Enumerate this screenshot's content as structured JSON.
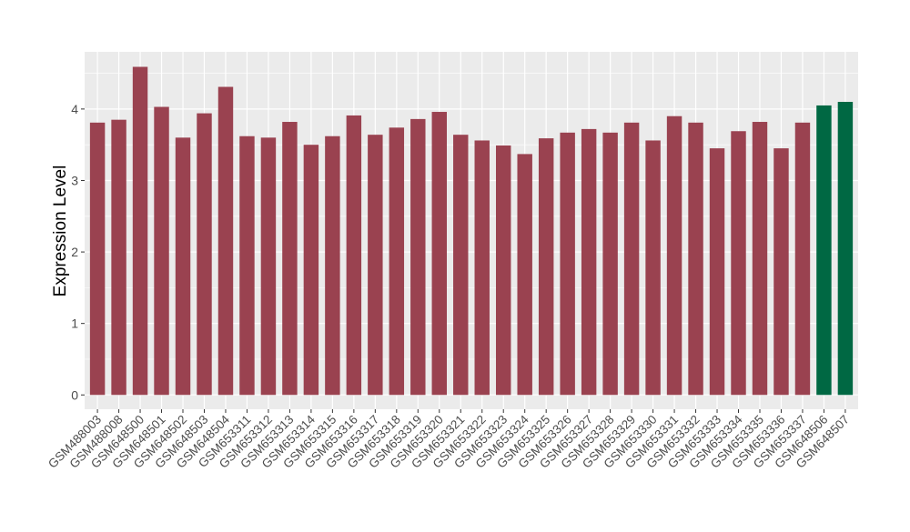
{
  "chart_data": {
    "type": "bar",
    "title": "",
    "xlabel": "",
    "ylabel": "Expression Level",
    "ylim": [
      -0.2,
      4.8
    ],
    "yticks": [
      0,
      1,
      2,
      3,
      4
    ],
    "grid": true,
    "legend": "none",
    "colors": {
      "default": "#9A4250",
      "highlight": "#006843",
      "panel": "#EBEBEB",
      "grid": "#FFFFFF"
    },
    "categories": [
      "GSM488003",
      "GSM488008",
      "GSM648500",
      "GSM648501",
      "GSM648502",
      "GSM648503",
      "GSM648504",
      "GSM653311",
      "GSM653312",
      "GSM653313",
      "GSM653314",
      "GSM653315",
      "GSM653316",
      "GSM653317",
      "GSM653318",
      "GSM653319",
      "GSM653320",
      "GSM653321",
      "GSM653322",
      "GSM653323",
      "GSM653324",
      "GSM653325",
      "GSM653326",
      "GSM653327",
      "GSM653328",
      "GSM653329",
      "GSM653330",
      "GSM653331",
      "GSM653332",
      "GSM653333",
      "GSM653334",
      "GSM653335",
      "GSM653336",
      "GSM653337",
      "GSM648506",
      "GSM648507"
    ],
    "values": [
      3.81,
      3.85,
      4.59,
      4.03,
      3.6,
      3.94,
      4.31,
      3.62,
      3.6,
      3.82,
      3.5,
      3.62,
      3.91,
      3.64,
      3.74,
      3.86,
      3.96,
      3.64,
      3.56,
      3.49,
      3.37,
      3.59,
      3.67,
      3.72,
      3.67,
      3.81,
      3.56,
      3.9,
      3.81,
      3.45,
      3.69,
      3.82,
      3.45,
      3.81,
      4.05,
      4.1
    ],
    "highlighted": [
      "GSM648506",
      "GSM648507"
    ]
  }
}
